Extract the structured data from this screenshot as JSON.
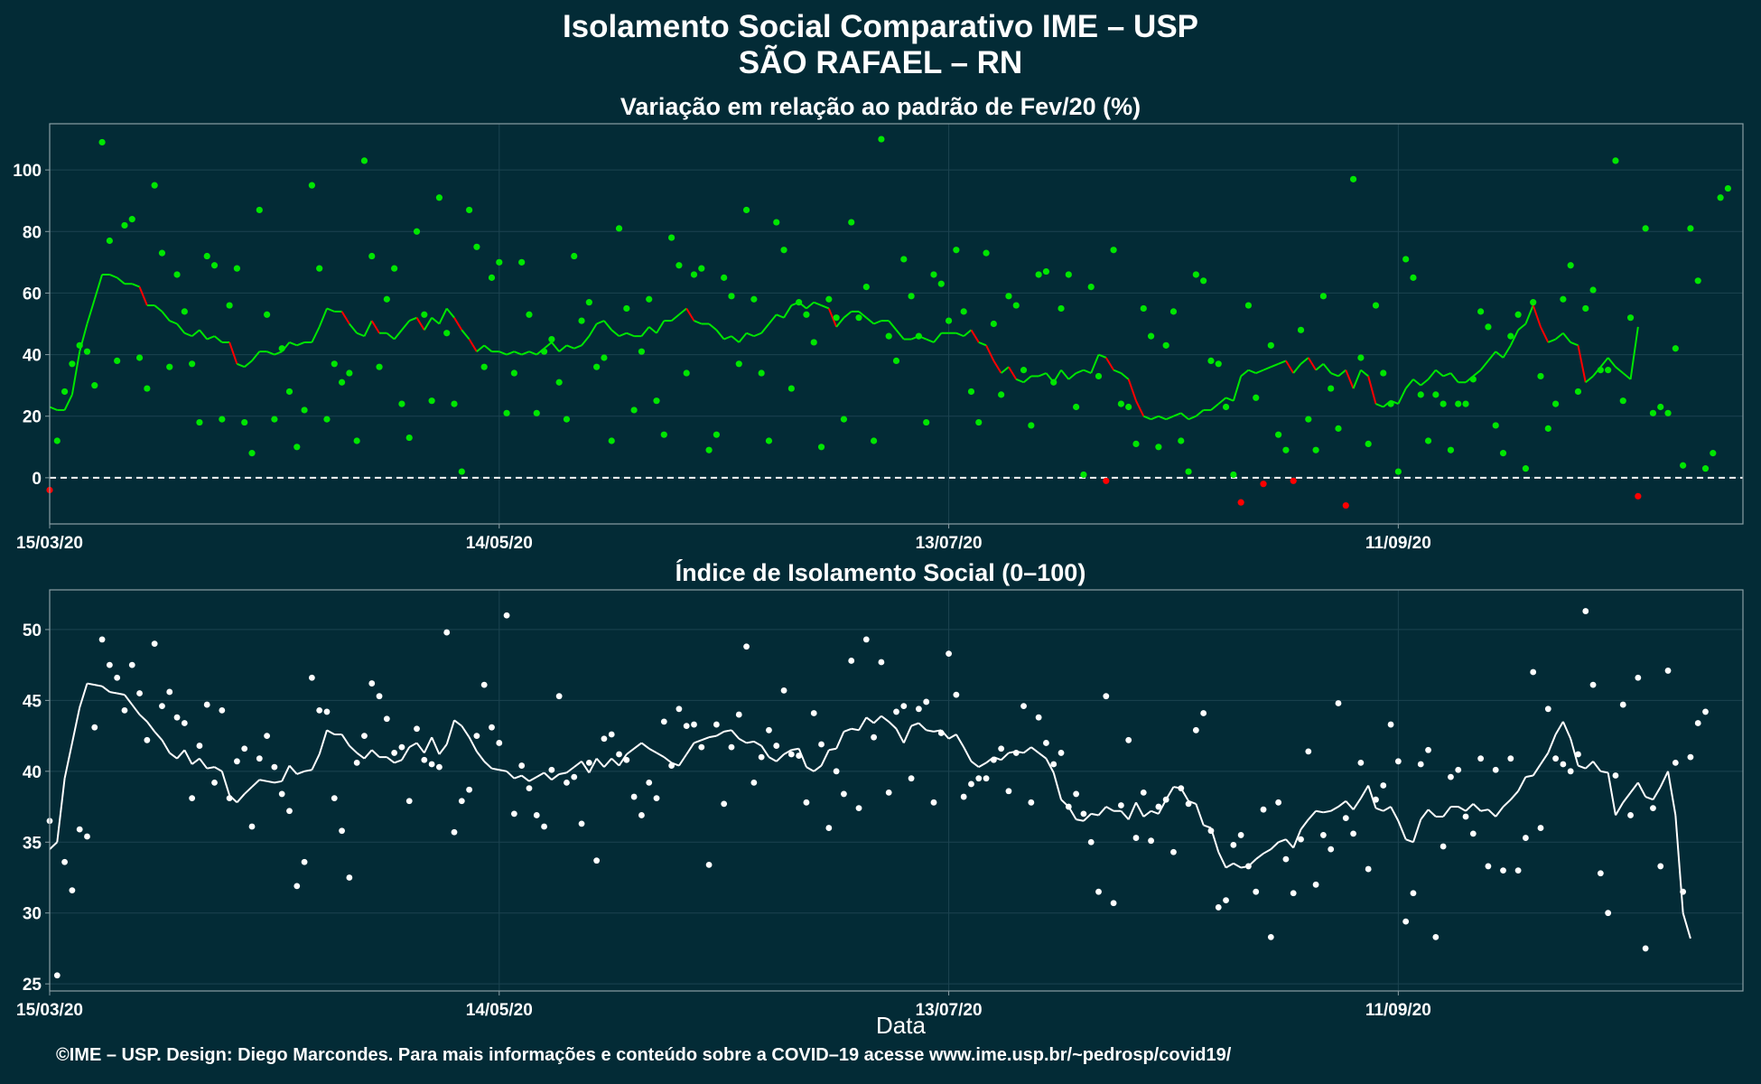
{
  "header": {
    "title_line1": "Isolamento Social Comparativo IME – USP",
    "title_line2": "SÃO RAFAEL – RN"
  },
  "footer": {
    "credit": "©IME – USP. Design: Diego Marcondes. Para mais informações e conteúdo sobre a COVID–19 acesse www.ime.usp.br/~pedrosp/covid19/"
  },
  "colors": {
    "background": "#032b36",
    "panel_border": "#8a9ea4",
    "grid": "#1c4350",
    "variation_positive": "#00e600",
    "variation_negative": "#ff0000",
    "index_series": "#ffffff"
  },
  "chart_data": [
    {
      "type": "scatter",
      "title": "Variação em relação ao padrão de Fev/20 (%)",
      "xlabel": "",
      "ylabel": "",
      "x_ticks": [
        "15/03/20",
        "14/05/20",
        "13/07/20",
        "11/09/20"
      ],
      "x_tick_day_index": [
        0,
        60,
        120,
        180
      ],
      "x_range_days": [
        0,
        226
      ],
      "ylim": [
        -15,
        115
      ],
      "y_ticks": [
        0,
        20,
        40,
        60,
        80,
        100
      ],
      "reference_line": {
        "y": 0,
        "style": "dashed"
      },
      "series": [
        {
          "values": [
            -4,
            12,
            28,
            37,
            43,
            41,
            30,
            109,
            77,
            38,
            82,
            84,
            39,
            29,
            95,
            73,
            36,
            66,
            54,
            37,
            18,
            72,
            69,
            19,
            56,
            68,
            18,
            8,
            87,
            53,
            19,
            42,
            28,
            10,
            22,
            95,
            68,
            19,
            37,
            31,
            34,
            12,
            103,
            72,
            36,
            58,
            68,
            24,
            13,
            80,
            53,
            25,
            91,
            47,
            24,
            2,
            87,
            75,
            36,
            65,
            70,
            21,
            34,
            70,
            53,
            21,
            41,
            45,
            31,
            19,
            72,
            51,
            57,
            36,
            39,
            12,
            81,
            55,
            22,
            41,
            58,
            25,
            14,
            78,
            69,
            34,
            66,
            68,
            9,
            14,
            65,
            59,
            37,
            87,
            58,
            34,
            12,
            83,
            74,
            29,
            57,
            53,
            44,
            10,
            58,
            52,
            19,
            83,
            52,
            62,
            12,
            110,
            46,
            38,
            71,
            59,
            46,
            18,
            66,
            63,
            51,
            74,
            54,
            28,
            18,
            73,
            50,
            27,
            59,
            56,
            35,
            17,
            66,
            67,
            31,
            55,
            66,
            23,
            1,
            62,
            33,
            -1,
            74,
            24,
            23,
            11,
            55,
            46,
            10,
            43,
            54,
            12,
            2,
            66,
            64,
            38,
            37,
            23,
            1,
            -8,
            56,
            26,
            -2,
            43,
            14,
            9,
            -1,
            48,
            19,
            9,
            59,
            29,
            16,
            -9,
            97,
            39,
            11,
            56,
            34,
            24,
            2,
            71,
            65,
            27,
            12,
            27,
            24,
            9,
            24,
            24,
            32,
            54,
            49,
            17,
            8,
            46,
            53,
            3,
            57,
            33,
            16,
            24,
            58,
            69,
            28,
            55,
            61,
            35,
            35,
            103,
            25,
            52,
            -6,
            81,
            21,
            23,
            21,
            42,
            4,
            81,
            64,
            3,
            8,
            91,
            94
          ],
          "moving_average": [
            23,
            22,
            22,
            27,
            41,
            50,
            58,
            66,
            66,
            65,
            63,
            63,
            62,
            56,
            56,
            54,
            51,
            50,
            47,
            46,
            48,
            45,
            46,
            44,
            44,
            37,
            36,
            38,
            41,
            41,
            40,
            41,
            44,
            43,
            44,
            44,
            49,
            55,
            54,
            54,
            50,
            47,
            46,
            51,
            47,
            47,
            45,
            48,
            51,
            52,
            48,
            52,
            50,
            55,
            52,
            48,
            45,
            41,
            43,
            41,
            41,
            40,
            41,
            40,
            41,
            40,
            42,
            44,
            41,
            43,
            42,
            43,
            46,
            50,
            51,
            48,
            46,
            47,
            46,
            46,
            49,
            47,
            51,
            51,
            53,
            55,
            51,
            50,
            50,
            48,
            45,
            46,
            44,
            47,
            46,
            47,
            50,
            53,
            52,
            56,
            57,
            55,
            57,
            56,
            55,
            49,
            52,
            54,
            54,
            52,
            50,
            51,
            51,
            48,
            45,
            45,
            46,
            45,
            44,
            47,
            47,
            47,
            46,
            48,
            44,
            43,
            38,
            34,
            36,
            32,
            31,
            33,
            33,
            34,
            31,
            35,
            32,
            34,
            35,
            34,
            40,
            39,
            35,
            34,
            32,
            25,
            20,
            19,
            20,
            19,
            20,
            21,
            19,
            20,
            22,
            22,
            24,
            26,
            25,
            33,
            35,
            34,
            35,
            36,
            37,
            38,
            34,
            37,
            39,
            35,
            37,
            34,
            33,
            35,
            29,
            35,
            33,
            24,
            23,
            25,
            24,
            29,
            32,
            30,
            32,
            35,
            33,
            34,
            31,
            31,
            33,
            35,
            38,
            41,
            39,
            43,
            48,
            50,
            56,
            49,
            44,
            45,
            47,
            44,
            43,
            31,
            33,
            36,
            39,
            36,
            34,
            32,
            49
          ],
          "color_rule": "green when >= 0 (or moving average not falling), red when negative / falling"
        }
      ],
      "grid": true
    },
    {
      "type": "scatter",
      "title": "Índice de Isolamento Social (0–100)",
      "xlabel": "Data",
      "ylabel": "",
      "x_ticks": [
        "15/03/20",
        "14/05/20",
        "13/07/20",
        "11/09/20"
      ],
      "x_tick_day_index": [
        0,
        60,
        120,
        180
      ],
      "x_range_days": [
        0,
        226
      ],
      "ylim": [
        24.5,
        52.8
      ],
      "y_ticks": [
        25,
        30,
        35,
        40,
        45,
        50
      ],
      "series": [
        {
          "values": [
            36.5,
            25.6,
            33.6,
            31.6,
            35.9,
            35.4,
            43.1,
            49.3,
            47.5,
            46.6,
            44.3,
            47.5,
            45.5,
            42.2,
            49.0,
            44.6,
            45.6,
            43.8,
            43.4,
            38.1,
            41.8,
            44.7,
            39.2,
            44.3,
            38.1,
            40.7,
            41.6,
            36.1,
            40.9,
            42.5,
            40.3,
            38.4,
            37.2,
            31.9,
            33.6,
            46.6,
            44.3,
            44.2,
            38.1,
            35.8,
            32.5,
            40.6,
            42.5,
            46.2,
            45.3,
            43.7,
            41.3,
            41.7,
            37.9,
            43.0,
            40.8,
            40.5,
            40.3,
            49.8,
            35.7,
            37.9,
            38.7,
            42.5,
            46.1,
            43.1,
            42.0,
            51.0,
            37.0,
            40.4,
            38.8,
            36.9,
            36.1,
            40.1,
            45.3,
            39.2,
            39.6,
            36.3,
            40.6,
            33.7,
            42.3,
            42.6,
            41.2,
            40.8,
            38.2,
            36.9,
            39.2,
            38.1,
            43.5,
            40.4,
            44.4,
            43.2,
            43.3,
            41.7,
            33.4,
            43.3,
            37.7,
            41.7,
            44.0,
            48.8,
            39.2,
            41.0,
            42.9,
            41.8,
            45.7,
            41.2,
            41.1,
            37.8,
            44.1,
            41.9,
            36.0,
            40.0,
            38.4,
            47.8,
            37.4,
            49.3,
            42.4,
            47.7,
            38.5,
            44.2,
            44.6,
            39.5,
            44.4,
            44.9,
            37.8,
            42.7,
            48.3,
            45.4,
            38.2,
            39.1,
            39.5,
            39.5,
            40.8,
            41.6,
            38.6,
            41.3,
            44.6,
            37.8,
            43.8,
            42.0,
            40.5,
            41.3,
            37.5,
            38.4,
            37.0,
            35.0,
            31.5,
            45.3,
            30.7,
            37.6,
            42.2,
            35.3,
            38.5,
            35.1,
            37.5,
            38.0,
            34.3,
            38.8,
            37.7,
            42.9,
            44.1,
            35.8,
            30.4,
            30.9,
            34.8,
            35.5,
            33.3,
            31.5,
            37.3,
            28.3,
            37.8,
            33.8,
            31.4,
            35.2,
            41.4,
            32.0,
            35.5,
            34.5,
            44.8,
            36.7,
            35.6,
            40.6,
            33.1,
            38.0,
            39.0,
            43.3,
            40.7,
            29.4,
            31.4,
            40.5,
            41.5,
            28.3,
            34.7,
            39.6,
            40.1,
            36.8,
            35.6,
            40.9,
            33.3,
            40.1,
            33.0,
            40.9,
            33.0,
            35.3,
            47.0,
            36.0,
            44.4,
            40.9,
            40.5,
            40.0,
            41.2,
            51.3,
            46.1,
            32.8,
            30.0,
            39.7,
            44.7,
            36.9,
            46.6,
            27.5,
            37.4,
            33.3,
            47.1,
            40.6,
            31.5,
            41.0,
            43.4,
            44.2
          ],
          "moving_average": [
            34.5,
            35.0,
            39.5,
            42.0,
            44.5,
            46.2,
            46.1,
            46.0,
            45.6,
            45.5,
            45.4,
            44.7,
            44.0,
            43.5,
            42.8,
            42.2,
            41.3,
            40.9,
            41.5,
            40.5,
            40.9,
            40.2,
            40.3,
            40.0,
            38.3,
            37.8,
            38.4,
            38.9,
            39.4,
            39.3,
            39.2,
            39.3,
            40.4,
            39.8,
            40.0,
            40.1,
            41.2,
            42.9,
            42.6,
            42.6,
            41.8,
            41.3,
            40.9,
            41.5,
            41.0,
            41.0,
            40.6,
            40.8,
            41.7,
            42.0,
            41.3,
            42.4,
            41.2,
            41.9,
            43.6,
            43.2,
            42.4,
            41.4,
            40.7,
            40.2,
            40.1,
            40.0,
            39.5,
            39.7,
            39.3,
            39.6,
            39.9,
            39.4,
            39.8,
            39.9,
            40.3,
            40.7,
            39.9,
            40.9,
            40.3,
            40.9,
            40.4,
            41.2,
            41.6,
            42.0,
            41.6,
            41.3,
            41.0,
            40.6,
            40.4,
            41.2,
            42.0,
            42.2,
            42.4,
            42.5,
            42.8,
            42.9,
            42.3,
            42.0,
            42.1,
            41.8,
            41.0,
            40.7,
            41.2,
            41.5,
            41.6,
            40.3,
            40.0,
            40.4,
            41.5,
            41.6,
            42.8,
            43.0,
            42.9,
            43.8,
            43.4,
            43.9,
            43.5,
            43.0,
            42.0,
            43.2,
            43.4,
            42.9,
            42.8,
            42.9,
            42.3,
            42.6,
            41.7,
            40.7,
            40.3,
            40.6,
            41.0,
            40.8,
            41.3,
            41.4,
            41.3,
            41.7,
            41.3,
            40.9,
            39.9,
            38.0,
            37.5,
            36.6,
            36.5,
            37.0,
            36.9,
            37.5,
            37.2,
            37.2,
            36.6,
            37.8,
            36.8,
            37.2,
            37.0,
            38.0,
            38.9,
            38.8,
            37.9,
            37.7,
            36.2,
            36.0,
            34.3,
            33.2,
            33.5,
            33.2,
            33.3,
            33.8,
            34.2,
            34.5,
            35.0,
            35.2,
            34.6,
            35.9,
            36.6,
            37.2,
            37.1,
            37.2,
            37.5,
            37.9,
            37.3,
            38.1,
            39.0,
            37.4,
            37.2,
            37.5,
            36.5,
            35.2,
            35.0,
            36.6,
            37.3,
            36.8,
            36.8,
            37.5,
            37.5,
            37.2,
            37.7,
            37.2,
            37.3,
            36.8,
            37.5,
            38.0,
            38.6,
            39.6,
            39.7,
            40.5,
            41.3,
            42.6,
            43.5,
            42.3,
            40.4,
            40.2,
            40.7,
            40.0,
            39.9,
            36.9,
            37.8,
            38.5,
            39.2,
            38.2,
            38.0,
            38.9,
            40.0,
            36.9,
            30.0,
            28.2
          ],
          "moving_average_style": "line"
        }
      ],
      "grid": true
    }
  ]
}
